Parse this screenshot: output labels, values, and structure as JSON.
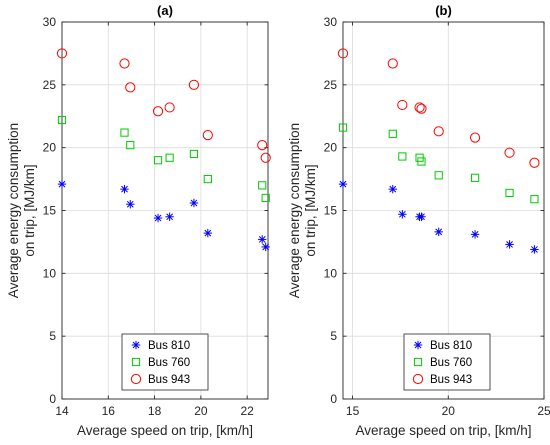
{
  "chart_data": [
    {
      "type": "scatter",
      "title": "(a)",
      "xlabel": "Average speed on trip, [km/h]",
      "ylabel": "Average energy consumption on trip, [MJ/km]",
      "ylabel_lines": [
        "Average energy consumption",
        "on trip, [MJ/km]"
      ],
      "xlim": [
        14,
        22.9
      ],
      "ylim": [
        0,
        30
      ],
      "xticks": [
        14,
        16,
        18,
        20,
        22
      ],
      "yticks": [
        0,
        5,
        10,
        15,
        20,
        25,
        30
      ],
      "grid": true,
      "legend_position": "bottom-center",
      "series": [
        {
          "name": "Bus 810",
          "marker": "asterisk",
          "color": "#0000ff",
          "points": [
            [
              14.0,
              17.1
            ],
            [
              16.7,
              16.7
            ],
            [
              16.95,
              15.5
            ],
            [
              18.15,
              14.4
            ],
            [
              18.65,
              14.5
            ],
            [
              19.7,
              15.6
            ],
            [
              20.3,
              13.2
            ],
            [
              22.65,
              12.7
            ],
            [
              22.8,
              12.1
            ]
          ]
        },
        {
          "name": "Bus 760",
          "marker": "square",
          "color": "#00cc00",
          "points": [
            [
              14.0,
              22.2
            ],
            [
              16.7,
              21.2
            ],
            [
              16.95,
              20.2
            ],
            [
              18.15,
              19.0
            ],
            [
              18.65,
              19.2
            ],
            [
              19.7,
              19.5
            ],
            [
              20.3,
              17.5
            ],
            [
              22.65,
              17.0
            ],
            [
              22.8,
              16.0
            ]
          ]
        },
        {
          "name": "Bus 943",
          "marker": "circle",
          "color": "#ff0000",
          "points": [
            [
              14.0,
              27.5
            ],
            [
              16.7,
              26.7
            ],
            [
              16.95,
              24.8
            ],
            [
              18.15,
              22.9
            ],
            [
              18.65,
              23.2
            ],
            [
              19.7,
              25.0
            ],
            [
              20.3,
              21.0
            ],
            [
              22.65,
              20.2
            ],
            [
              22.8,
              19.2
            ]
          ]
        }
      ]
    },
    {
      "type": "scatter",
      "title": "(b)",
      "xlabel": "Average speed on trip, [km/h]",
      "ylabel": "Average energy consumption on trip, [MJ/km]",
      "ylabel_lines": [
        "Average energy consumption",
        "on trip, [MJ/km]"
      ],
      "xlim": [
        14.5,
        25
      ],
      "ylim": [
        0,
        30
      ],
      "xticks": [
        15,
        20,
        25
      ],
      "yticks": [
        0,
        5,
        10,
        15,
        20,
        25,
        30
      ],
      "grid": true,
      "legend_position": "bottom-center",
      "series": [
        {
          "name": "Bus 810",
          "marker": "asterisk",
          "color": "#0000ff",
          "points": [
            [
              14.5,
              17.1
            ],
            [
              17.1,
              16.7
            ],
            [
              17.6,
              14.7
            ],
            [
              18.5,
              14.5
            ],
            [
              18.6,
              14.5
            ],
            [
              19.5,
              13.3
            ],
            [
              21.4,
              13.1
            ],
            [
              23.2,
              12.3
            ],
            [
              24.5,
              11.9
            ]
          ]
        },
        {
          "name": "Bus 760",
          "marker": "square",
          "color": "#00cc00",
          "points": [
            [
              14.5,
              21.6
            ],
            [
              17.1,
              21.1
            ],
            [
              17.6,
              19.3
            ],
            [
              18.5,
              19.2
            ],
            [
              18.6,
              18.9
            ],
            [
              19.5,
              17.8
            ],
            [
              21.4,
              17.6
            ],
            [
              23.2,
              16.4
            ],
            [
              24.5,
              15.9
            ]
          ]
        },
        {
          "name": "Bus 943",
          "marker": "circle",
          "color": "#ff0000",
          "points": [
            [
              14.5,
              27.5
            ],
            [
              17.1,
              26.7
            ],
            [
              17.6,
              23.4
            ],
            [
              18.5,
              23.2
            ],
            [
              18.6,
              23.1
            ],
            [
              19.5,
              21.3
            ],
            [
              21.4,
              20.8
            ],
            [
              23.2,
              19.6
            ],
            [
              24.5,
              18.8
            ]
          ]
        }
      ]
    }
  ]
}
